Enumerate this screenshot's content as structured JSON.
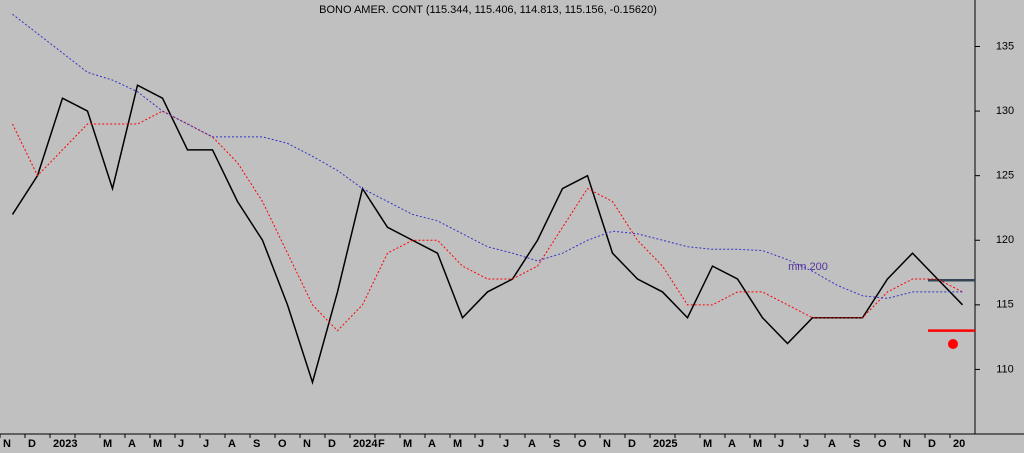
{
  "chart_data": {
    "type": "line",
    "title": "BONO AMER. CONT (115.344, 115.406, 114.813, 115.156, -0.15620)",
    "annotation": "mm 200",
    "categories": [
      "N",
      "D",
      "2023",
      null,
      "M",
      "A",
      "M",
      "J",
      "J",
      "A",
      "S",
      "O",
      "N",
      "D",
      "2024",
      "F",
      "M",
      "A",
      "M",
      "J",
      "J",
      "A",
      "S",
      "O",
      "N",
      "D",
      "2025",
      null,
      "M",
      "A",
      "M",
      "J",
      "J",
      "A",
      "S",
      "O",
      "N",
      "D",
      "20"
    ],
    "series": [
      {
        "color": "#000000",
        "values": [
          122,
          125,
          131,
          130,
          124,
          132,
          131,
          127,
          127,
          123,
          120,
          115,
          109,
          116,
          124,
          121,
          120,
          119,
          114,
          116,
          117,
          120,
          124,
          125,
          119,
          117,
          116,
          114,
          118,
          117,
          114,
          112,
          114,
          114,
          114,
          117,
          119,
          117,
          115
        ]
      },
      {
        "color": "#ff0000",
        "values": [
          129,
          125,
          127,
          129,
          129,
          129,
          130,
          129,
          128,
          126,
          123,
          119,
          115,
          113,
          115,
          119,
          120,
          120,
          118,
          117,
          117,
          118,
          121,
          124,
          123,
          120,
          118,
          115,
          115,
          116,
          116,
          115,
          114,
          114,
          114,
          116,
          117,
          117,
          116
        ]
      },
      {
        "color": "#3333cc",
        "values": [
          137.5,
          136,
          134.5,
          133,
          132.4,
          131.5,
          130,
          129,
          128,
          128,
          128,
          127.5,
          126.5,
          125.4,
          124,
          123,
          122,
          121.5,
          120.5,
          119.5,
          119,
          118.4,
          119,
          120,
          120.7,
          120.5,
          120,
          119.5,
          119.3,
          119.3,
          119.2,
          118.5,
          117.6,
          116.5,
          115.7,
          115.5,
          116,
          116,
          116
        ]
      }
    ],
    "hlines": [
      {
        "value": 113,
        "color": "#ff0000"
      },
      {
        "value": 116.9,
        "color": "#334455"
      }
    ],
    "ylim": [
      105,
      138.6
    ],
    "yticks": [
      110,
      115,
      120,
      125,
      130,
      135
    ]
  }
}
